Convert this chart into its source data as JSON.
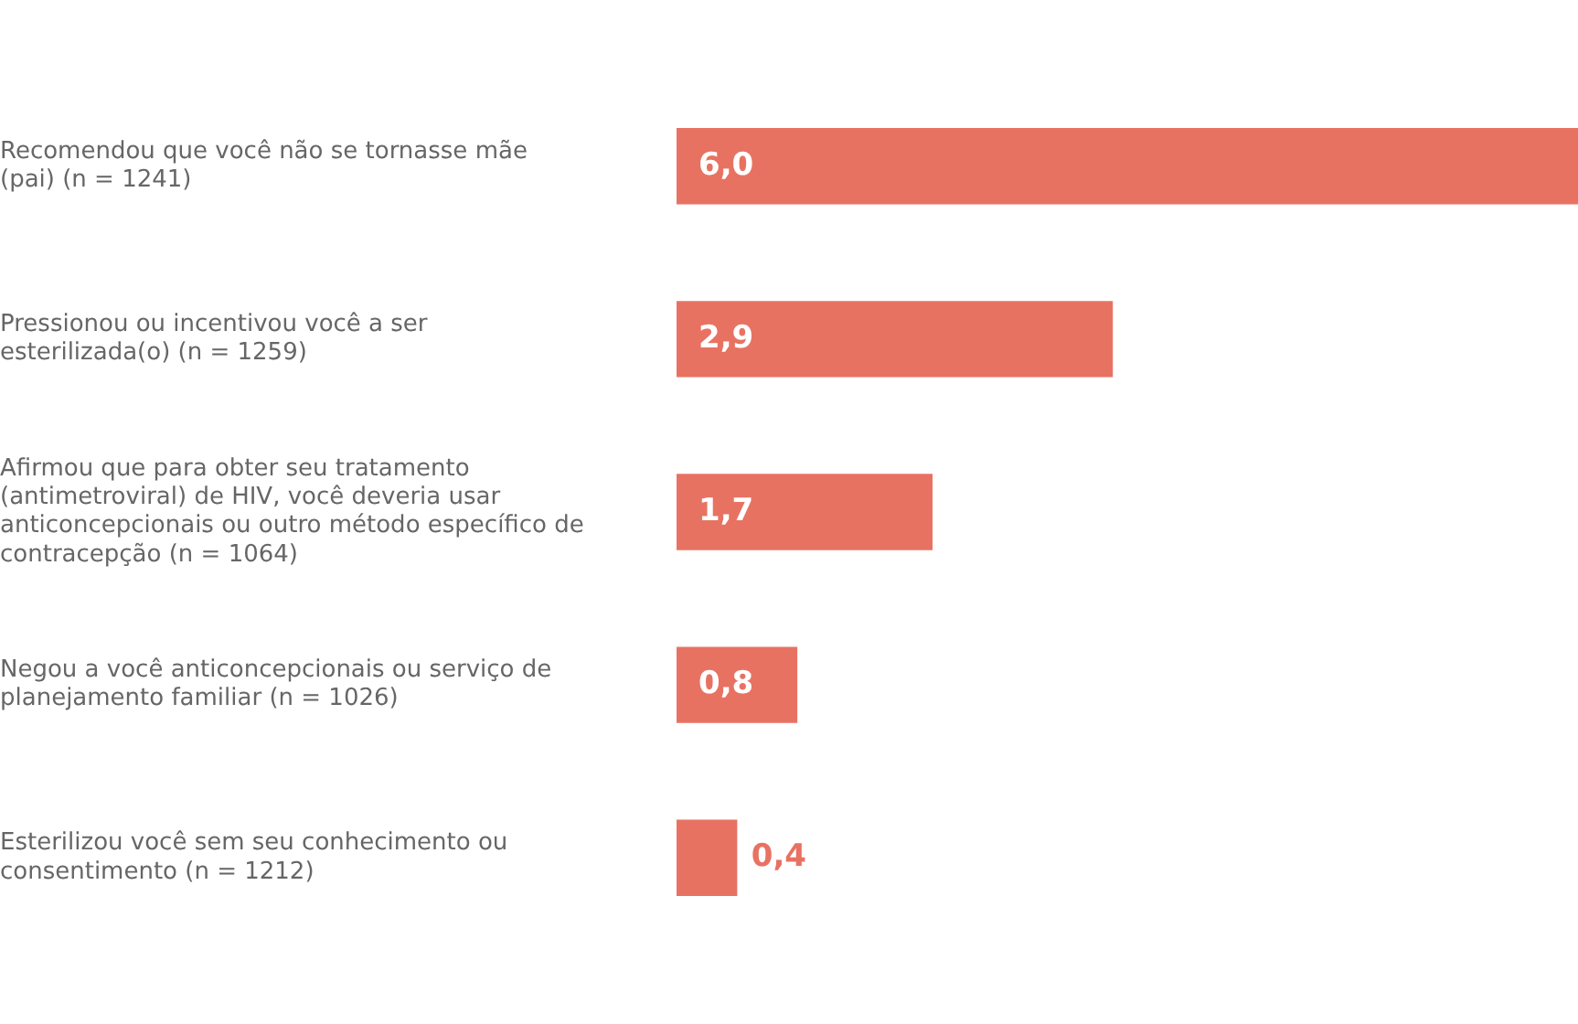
{
  "chart_data": {
    "type": "bar",
    "orientation": "horizontal",
    "categories": [
      "Recomendou que você não se tornasse mãe (pai) (n = 1241)",
      "Pressionou ou incentivou você a ser esterilizada(o) (n = 1259)",
      "Afirmou que para obter seu tratamento (antimetroviral) de HIV, você deveria usar anticoncepcionais ou outro método específico de contracepção (n = 1064)",
      "Negou a você anticoncepcionais ou serviço de planejamento familiar (n = 1026)",
      "Esterilizou você sem seu conhecimento ou consentimento (n = 1212)"
    ],
    "values": [
      6.0,
      2.9,
      1.7,
      0.8,
      0.4
    ],
    "value_labels": [
      "6,0",
      "2,9",
      "1,7",
      "0,8",
      "0,4"
    ],
    "color": "#e87262",
    "xlim": [
      0,
      6
    ],
    "tick_labels": "y",
    "grid": false,
    "legend": false
  }
}
